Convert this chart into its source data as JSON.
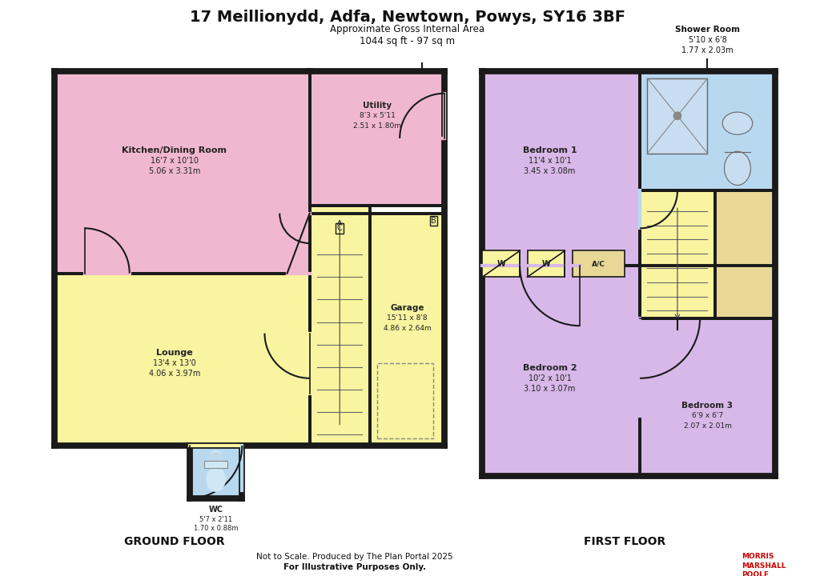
{
  "title": "17 Meillionydd, Adfa, Newtown, Powys, SY16 3BF",
  "subtitle1": "Approximate Gross Internal Area",
  "subtitle2": "1044 sq ft - 97 sq m",
  "bg_color": "#ffffff",
  "wall_color": "#1a1a1a",
  "colors": {
    "pink": "#f0b8d0",
    "lilac": "#d8b8e8",
    "yellow": "#f8f4a0",
    "blue": "#b8d8f0",
    "tan": "#e8d898"
  },
  "footer1": "Not to Scale. Produced by The Plan Portal 2025",
  "footer2": "For Illustrative Purposes Only.",
  "ground_floor_label": "GROUND FLOOR",
  "first_floor_label": "FIRST FLOOR"
}
